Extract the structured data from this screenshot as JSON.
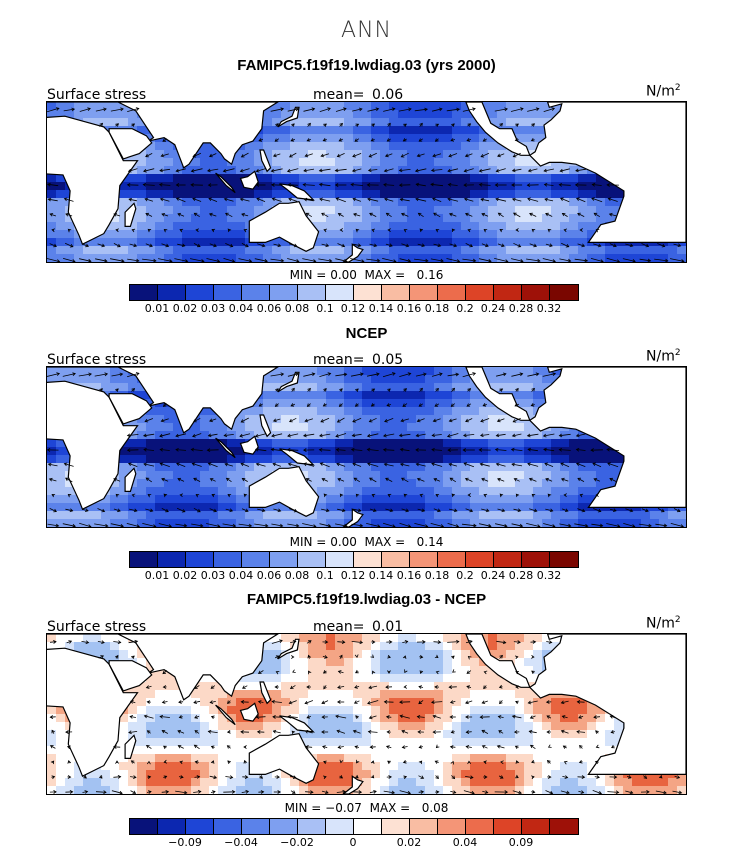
{
  "main_title": "ANN",
  "colors": {
    "ocean_blues": [
      "#0b1f8a",
      "#1537c4",
      "#2b56db",
      "#4d78e6",
      "#7597ee",
      "#9bb6f3",
      "#c3d4f8"
    ],
    "ocean_reds": [
      "#fde0d2",
      "#f9b79d",
      "#f48a67",
      "#e95d3c",
      "#d5381f",
      "#b4200f",
      "#8e0c04"
    ],
    "land": "#ffffff",
    "diff_pos": "#f4a585",
    "diff_neg": "#aecbf4"
  },
  "panels": [
    {
      "title": "FAMIPC5.f19f19.lwdiag.03 (yrs 2000)",
      "left_label": "Surface stress",
      "mean_label": "mean=",
      "mean_value": "0.06",
      "units_base": "N/m",
      "units_exp": "2",
      "min_label": "MIN =",
      "min_value": "0.00",
      "max_label": "MAX =",
      "max_value": "0.16",
      "colorbar_labels": [
        "0.01",
        "0.02",
        "0.03",
        "0.04",
        "0.06",
        "0.08",
        "0.1",
        "0.12",
        "0.14",
        "0.16",
        "0.18",
        "0.2",
        "0.24",
        "0.28",
        "0.32"
      ],
      "colorbar_colors": [
        "#08127a",
        "#0c27b0",
        "#1e45d6",
        "#3a63e2",
        "#5b82ea",
        "#7e9ff0",
        "#a9c0f5",
        "#d8e4fb",
        "#fde1d3",
        "#f9bda3",
        "#f49577",
        "#ec6c4c",
        "#dd4427",
        "#c12713",
        "#9e1108",
        "#7a0600"
      ],
      "field": "abs"
    },
    {
      "title": "NCEP",
      "left_label": "Surface stress",
      "mean_label": "mean=",
      "mean_value": "0.05",
      "units_base": "N/m",
      "units_exp": "2",
      "min_label": "MIN =",
      "min_value": "0.00",
      "max_label": "MAX =",
      "max_value": "0.14",
      "colorbar_labels": [
        "0.01",
        "0.02",
        "0.03",
        "0.04",
        "0.06",
        "0.08",
        "0.1",
        "0.12",
        "0.14",
        "0.16",
        "0.18",
        "0.2",
        "0.24",
        "0.28",
        "0.32"
      ],
      "colorbar_colors": [
        "#08127a",
        "#0c27b0",
        "#1e45d6",
        "#3a63e2",
        "#5b82ea",
        "#7e9ff0",
        "#a9c0f5",
        "#d8e4fb",
        "#fde1d3",
        "#f9bda3",
        "#f49577",
        "#ec6c4c",
        "#dd4427",
        "#c12713",
        "#9e1108",
        "#7a0600"
      ],
      "field": "abs"
    },
    {
      "title": "FAMIPC5.f19f19.lwdiag.03 - NCEP",
      "left_label": "Surface stress",
      "mean_label": "mean=",
      "mean_value": "0.01",
      "units_base": "N/m",
      "units_exp": "2",
      "min_label": "MIN =",
      "min_value": "−0.07",
      "max_label": "MAX =",
      "max_value": "0.08",
      "colorbar_labels": [
        "−0.09",
        "−0.04",
        "−0.02",
        "0",
        "0.02",
        "0.04",
        "0.09"
      ],
      "colorbar_colors": [
        "#08127a",
        "#0c27b0",
        "#1e45d6",
        "#3a63e2",
        "#5b82ea",
        "#7e9ff0",
        "#a9c0f5",
        "#d8e4fb",
        "#ffffff",
        "#fde1d3",
        "#f9bda3",
        "#f49577",
        "#ec6c4c",
        "#dd4427",
        "#c12713",
        "#9e1108"
      ],
      "field": "diff"
    }
  ]
}
